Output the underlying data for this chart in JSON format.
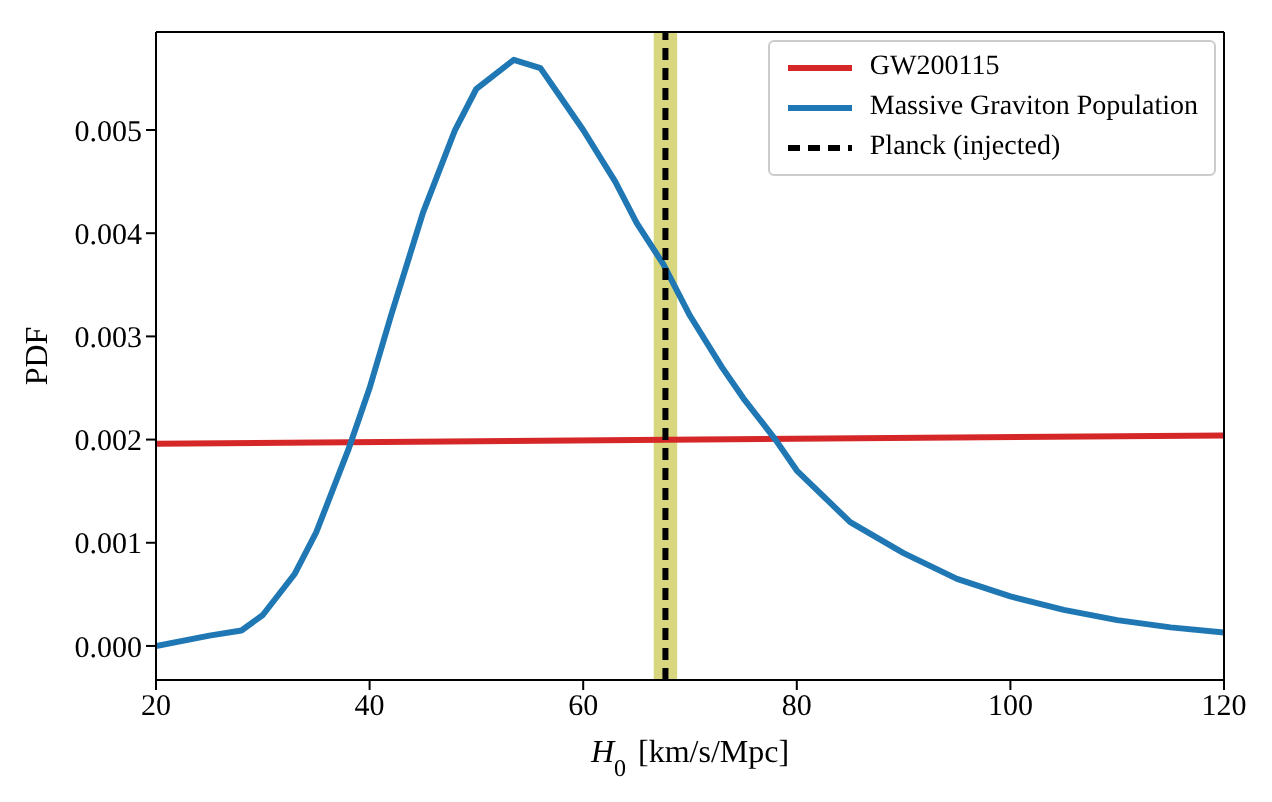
{
  "chart_data": {
    "type": "line",
    "xlabel": "H$_{0}$ [km/s/Mpc]",
    "ylabel": "PDF",
    "xlim": [
      20,
      120
    ],
    "xticks": [
      20,
      40,
      60,
      80,
      100,
      120
    ],
    "ylim": [
      -0.00033,
      0.00595
    ],
    "yticks": [
      {
        "value": 0,
        "label": "0.000"
      },
      {
        "value": 0.001,
        "label": "0.001"
      },
      {
        "value": 0.002,
        "label": "0.002"
      },
      {
        "value": 0.003,
        "label": "0.003"
      },
      {
        "value": 0.004,
        "label": "0.004"
      },
      {
        "value": 0.005,
        "label": "0.005"
      }
    ],
    "legend": "top right",
    "bands": [
      {
        "axis": "x",
        "from": 66.6,
        "to": 68.8,
        "color": "#d8d77f"
      }
    ],
    "series": [
      {
        "name": "GW200115",
        "color": "#d62728",
        "x": [
          20,
          120
        ],
        "values": [
          0.00196,
          0.00204
        ]
      },
      {
        "name": "Massive Graviton Population",
        "color": "#1f77b4",
        "x": [
          20,
          25,
          28,
          30,
          33,
          35,
          38,
          40,
          42,
          45,
          48,
          50,
          53.5,
          56,
          58,
          60,
          63,
          65,
          67.5,
          70,
          73,
          75,
          78,
          80,
          85,
          90,
          95,
          100,
          105,
          110,
          115,
          120
        ],
        "values": [
          0,
          0.0001,
          0.00015,
          0.0003,
          0.0007,
          0.0011,
          0.0019,
          0.0025,
          0.0032,
          0.0042,
          0.005,
          0.0054,
          0.00568,
          0.0056,
          0.0053,
          0.005,
          0.0045,
          0.0041,
          0.0037,
          0.0032,
          0.0027,
          0.0024,
          0.002,
          0.0017,
          0.0012,
          0.0009,
          0.00065,
          0.00048,
          0.00035,
          0.00025,
          0.00018,
          0.00013
        ]
      },
      {
        "name": "Planck (injected)",
        "color": "#000000",
        "line_style": "dashed",
        "x": [
          67.7,
          67.7
        ],
        "values": [
          -0.00033,
          0.00595
        ]
      }
    ]
  }
}
